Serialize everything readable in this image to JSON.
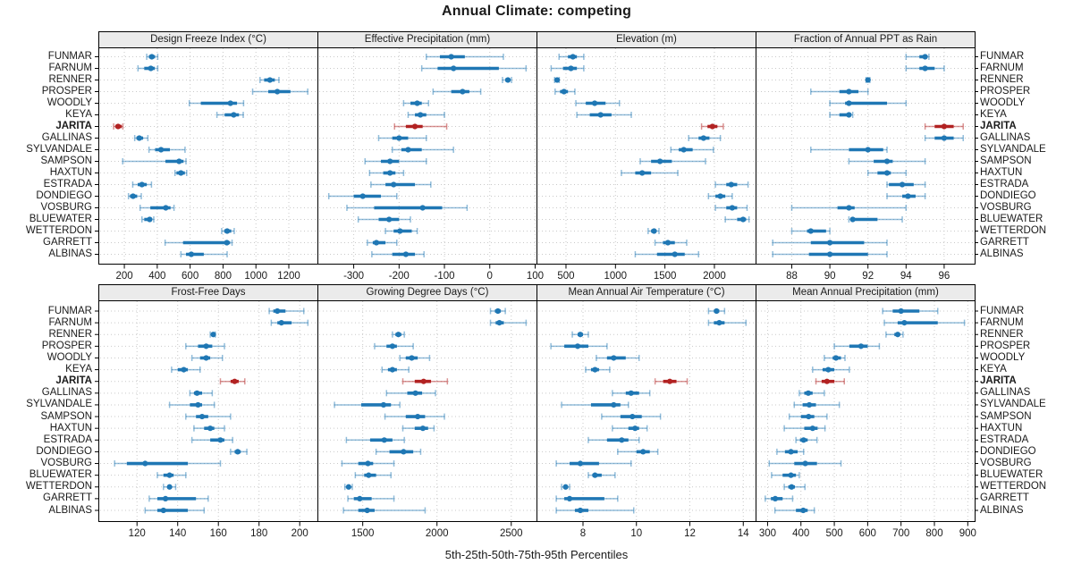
{
  "title": "Annual Climate: competing",
  "caption": "5th-25th-50th-75th-95th Percentiles",
  "highlight_site": "JARITA",
  "colors": {
    "series": "#1f77b4",
    "highlight": "#b22222",
    "grid": "#c9c9c9",
    "strip_bg": "#ebebeb",
    "panel_border": "#000000",
    "text": "#1a1a1a"
  },
  "sites": [
    "FUNMAR",
    "FARNUM",
    "RENNER",
    "PROSPER",
    "WOODLY",
    "KEYA",
    "JARITA",
    "GALLINAS",
    "SYLVANDALE",
    "SAMPSON",
    "HAXTUN",
    "ESTRADA",
    "DONDIEGO",
    "VOSBURG",
    "BLUEWATER",
    "WETTERDON",
    "GARRETT",
    "ALBINAS"
  ],
  "chart_data": {
    "type": "dotplot-percentiles",
    "percentiles": [
      5,
      25,
      50,
      75,
      95
    ],
    "legend_position": "none",
    "grid": "dotted",
    "panels": [
      {
        "title": "Design Freeze Index (°C)",
        "row": 0,
        "col": 0,
        "ticks": [
          200,
          400,
          600,
          800,
          1000,
          1200
        ],
        "xlim": [
          42,
          1374
        ],
        "values": [
          [
            336,
            349,
            367,
            387,
            403
          ],
          [
            283,
            321,
            361,
            385,
            403
          ],
          [
            1025,
            1050,
            1085,
            1115,
            1140
          ],
          [
            980,
            1075,
            1130,
            1210,
            1315
          ],
          [
            595,
            665,
            845,
            885,
            925
          ],
          [
            763,
            810,
            865,
            897,
            923
          ],
          [
            135,
            145,
            162,
            184,
            191
          ],
          [
            263,
            274,
            291,
            314,
            343
          ],
          [
            350,
            387,
            423,
            477,
            569
          ],
          [
            190,
            450,
            533,
            560,
            575
          ],
          [
            508,
            517,
            544,
            568,
            579
          ],
          [
            251,
            281,
            307,
            336,
            365
          ],
          [
            225,
            234,
            253,
            278,
            303
          ],
          [
            296,
            358,
            452,
            481,
            502
          ],
          [
            307,
            321,
            354,
            365,
            379
          ],
          [
            792,
            807,
            825,
            850,
            868
          ],
          [
            448,
            557,
            823,
            843,
            855
          ],
          [
            544,
            575,
            607,
            683,
            825
          ]
        ]
      },
      {
        "title": "Effective Precipitation (mm)",
        "row": 0,
        "col": 1,
        "ticks": [
          -300,
          -200,
          -100,
          0,
          100
        ],
        "xlim": [
          -380,
          103
        ],
        "values": [
          [
            -140,
            -110,
            -85,
            -55,
            30
          ],
          [
            -150,
            -115,
            -80,
            20,
            80
          ],
          [
            28,
            34,
            40,
            45,
            48
          ],
          [
            -125,
            -85,
            -60,
            -45,
            -20
          ],
          [
            -190,
            -175,
            -160,
            -150,
            -135
          ],
          [
            -180,
            -165,
            -153,
            -140,
            -100
          ],
          [
            -210,
            -185,
            -165,
            -148,
            -95
          ],
          [
            -245,
            -215,
            -200,
            -180,
            -140
          ],
          [
            -215,
            -195,
            -180,
            -150,
            -80
          ],
          [
            -275,
            -240,
            -220,
            -200,
            -140
          ],
          [
            -265,
            -235,
            -220,
            -208,
            -190
          ],
          [
            -262,
            -230,
            -212,
            -165,
            -130
          ],
          [
            -355,
            -300,
            -280,
            -240,
            -205
          ],
          [
            -315,
            -255,
            -148,
            -105,
            -50
          ],
          [
            -290,
            -245,
            -222,
            -200,
            -175
          ],
          [
            -230,
            -212,
            -198,
            -172,
            -160
          ],
          [
            -270,
            -258,
            -250,
            -230,
            -205
          ],
          [
            -260,
            -215,
            -185,
            -165,
            -145
          ]
        ]
      },
      {
        "title": "Elevation (m)",
        "row": 0,
        "col": 2,
        "ticks": [
          500,
          1000,
          1500,
          2000
        ],
        "xlim": [
          202,
          2416
        ],
        "values": [
          [
            430,
            520,
            570,
            610,
            680
          ],
          [
            350,
            470,
            550,
            610,
            680
          ],
          [
            385,
            400,
            410,
            420,
            432
          ],
          [
            390,
            440,
            480,
            520,
            590
          ],
          [
            600,
            700,
            790,
            900,
            1040
          ],
          [
            610,
            740,
            850,
            960,
            1160
          ],
          [
            1870,
            1930,
            1980,
            2030,
            2090
          ],
          [
            1740,
            1840,
            1890,
            1950,
            2060
          ],
          [
            1560,
            1640,
            1690,
            1780,
            1990
          ],
          [
            1250,
            1360,
            1450,
            1570,
            1910
          ],
          [
            1060,
            1200,
            1270,
            1360,
            1630
          ],
          [
            2010,
            2120,
            2170,
            2230,
            2340
          ],
          [
            1940,
            2010,
            2060,
            2110,
            2180
          ],
          [
            2010,
            2120,
            2180,
            2230,
            2330
          ],
          [
            2110,
            2230,
            2290,
            2320,
            2350
          ],
          [
            1330,
            1360,
            1390,
            1410,
            1440
          ],
          [
            1400,
            1480,
            1530,
            1600,
            1720
          ],
          [
            1200,
            1420,
            1600,
            1700,
            1840
          ]
        ]
      },
      {
        "title": "Fraction of Annual PPT as Rain",
        "row": 0,
        "col": 3,
        "ticks": [
          88,
          90,
          92,
          94,
          96
        ],
        "xlim": [
          86.1,
          97.6
        ],
        "values": [
          [
            94,
            94.7,
            95,
            95.1,
            95.2
          ],
          [
            94,
            94.7,
            95,
            95.5,
            96
          ],
          [
            91.9,
            92,
            92,
            92,
            92.1
          ],
          [
            89,
            90.5,
            91,
            91.5,
            92
          ],
          [
            90,
            90.8,
            91,
            93,
            94
          ],
          [
            90,
            90.5,
            91,
            91.1,
            91.2
          ],
          [
            95,
            95.5,
            96,
            96.5,
            97
          ],
          [
            95,
            95.5,
            96,
            96.5,
            97
          ],
          [
            89,
            91,
            92,
            92.8,
            93
          ],
          [
            91,
            92.3,
            93,
            93.3,
            95
          ],
          [
            92,
            92.5,
            93,
            93.2,
            94
          ],
          [
            93,
            93.1,
            93.8,
            94.4,
            95
          ],
          [
            93,
            93.8,
            94.1,
            94.5,
            95
          ],
          [
            88,
            90.4,
            91,
            91.3,
            94
          ],
          [
            91,
            91.1,
            91.2,
            92.5,
            93.8
          ],
          [
            88,
            88.8,
            89,
            89.8,
            90
          ],
          [
            87,
            89,
            90,
            91.8,
            93
          ],
          [
            87,
            88.9,
            90,
            92,
            93
          ]
        ]
      },
      {
        "title": "Frost-Free Days",
        "row": 1,
        "col": 0,
        "ticks": [
          120,
          140,
          160,
          180,
          200
        ],
        "xlim": [
          101,
          208.7
        ],
        "values": [
          [
            185,
            187,
            189,
            193,
            202
          ],
          [
            186,
            189,
            191,
            196,
            204
          ],
          [
            156,
            157,
            157.5,
            158,
            158.5
          ],
          [
            144,
            150,
            154,
            157,
            163
          ],
          [
            147,
            151,
            154,
            156,
            162
          ],
          [
            137,
            140,
            143,
            145,
            151
          ],
          [
            161,
            166,
            168,
            170,
            173
          ],
          [
            146,
            148,
            149.5,
            152,
            157
          ],
          [
            136,
            146,
            150,
            152,
            158
          ],
          [
            144,
            149,
            152,
            155,
            166
          ],
          [
            148,
            153,
            156,
            158,
            163
          ],
          [
            147,
            156,
            161,
            163,
            167
          ],
          [
            166,
            168,
            169.5,
            171,
            174
          ],
          [
            109,
            115,
            124,
            145,
            161
          ],
          [
            130,
            133,
            136,
            138,
            144
          ],
          [
            133,
            135,
            136,
            137,
            139
          ],
          [
            126,
            130,
            134,
            149,
            155
          ],
          [
            124,
            130,
            133,
            145,
            153
          ]
        ]
      },
      {
        "title": "Growing Degree Days (°C)",
        "row": 1,
        "col": 1,
        "ticks": [
          1500,
          2000,
          2500
        ],
        "xlim": [
          1195,
          2670
        ],
        "values": [
          [
            2360,
            2390,
            2410,
            2430,
            2460
          ],
          [
            2360,
            2395,
            2420,
            2450,
            2600
          ],
          [
            1700,
            1720,
            1740,
            1760,
            1780
          ],
          [
            1580,
            1660,
            1700,
            1730,
            1840
          ],
          [
            1750,
            1790,
            1830,
            1870,
            1950
          ],
          [
            1630,
            1670,
            1700,
            1730,
            1810
          ],
          [
            1770,
            1850,
            1910,
            1960,
            2070
          ],
          [
            1660,
            1800,
            1855,
            1900,
            1990
          ],
          [
            1310,
            1490,
            1640,
            1690,
            1750
          ],
          [
            1650,
            1790,
            1870,
            1920,
            2050
          ],
          [
            1770,
            1850,
            1905,
            1940,
            1980
          ],
          [
            1390,
            1550,
            1645,
            1700,
            1780
          ],
          [
            1590,
            1680,
            1775,
            1840,
            1890
          ],
          [
            1360,
            1470,
            1535,
            1570,
            1710
          ],
          [
            1450,
            1510,
            1540,
            1590,
            1690
          ],
          [
            1380,
            1395,
            1405,
            1415,
            1430
          ],
          [
            1400,
            1440,
            1480,
            1560,
            1710
          ],
          [
            1370,
            1470,
            1530,
            1580,
            1920
          ]
        ]
      },
      {
        "title": "Mean Annual Air Temperature (°C)",
        "row": 1,
        "col": 2,
        "ticks": [
          8,
          10,
          12,
          14
        ],
        "xlim": [
          6.26,
          14.46
        ],
        "values": [
          [
            12.7,
            12.9,
            13.0,
            13.1,
            13.3
          ],
          [
            12.7,
            12.9,
            13.1,
            13.3,
            14.1
          ],
          [
            7.6,
            7.8,
            7.9,
            8.0,
            8.2
          ],
          [
            6.8,
            7.3,
            7.8,
            8.2,
            8.9
          ],
          [
            8.5,
            8.9,
            9.15,
            9.6,
            10.1
          ],
          [
            8.1,
            8.3,
            8.45,
            8.6,
            9.0
          ],
          [
            10.7,
            11.0,
            11.25,
            11.5,
            11.9
          ],
          [
            9.1,
            9.6,
            9.8,
            10.1,
            10.5
          ],
          [
            7.2,
            8.3,
            9.15,
            9.4,
            9.7
          ],
          [
            8.7,
            9.4,
            9.85,
            10.2,
            10.9
          ],
          [
            9.1,
            9.7,
            9.95,
            10.1,
            10.4
          ],
          [
            8.2,
            8.9,
            9.45,
            9.7,
            10.1
          ],
          [
            9.3,
            10.0,
            10.25,
            10.5,
            10.8
          ],
          [
            7.0,
            7.5,
            7.9,
            8.6,
            9.8
          ],
          [
            8.2,
            8.35,
            8.45,
            8.7,
            9.2
          ],
          [
            7.2,
            7.3,
            7.35,
            7.4,
            7.5
          ],
          [
            7.0,
            7.3,
            7.5,
            8.8,
            9.3
          ],
          [
            7.0,
            7.7,
            7.9,
            8.2,
            9.9
          ]
        ]
      },
      {
        "title": "Mean Annual Precipitation (mm)",
        "row": 1,
        "col": 3,
        "ticks": [
          300,
          400,
          500,
          600,
          700,
          800,
          900
        ],
        "xlim": [
          264,
          920.6
        ],
        "values": [
          [
            645,
            675,
            700,
            755,
            810
          ],
          [
            650,
            690,
            710,
            810,
            890
          ],
          [
            655,
            680,
            690,
            697,
            706
          ],
          [
            500,
            545,
            580,
            600,
            635
          ],
          [
            470,
            495,
            505,
            520,
            532
          ],
          [
            435,
            465,
            482,
            500,
            545
          ],
          [
            445,
            462,
            478,
            500,
            530
          ],
          [
            395,
            410,
            422,
            435,
            470
          ],
          [
            380,
            405,
            425,
            445,
            515
          ],
          [
            365,
            400,
            423,
            440,
            478
          ],
          [
            350,
            410,
            435,
            450,
            472
          ],
          [
            385,
            397,
            408,
            420,
            448
          ],
          [
            328,
            352,
            370,
            390,
            408
          ],
          [
            305,
            380,
            413,
            448,
            520
          ],
          [
            312,
            345,
            370,
            385,
            395
          ],
          [
            350,
            362,
            372,
            382,
            412
          ],
          [
            293,
            310,
            323,
            345,
            375
          ],
          [
            322,
            385,
            407,
            420,
            440
          ]
        ]
      }
    ]
  }
}
